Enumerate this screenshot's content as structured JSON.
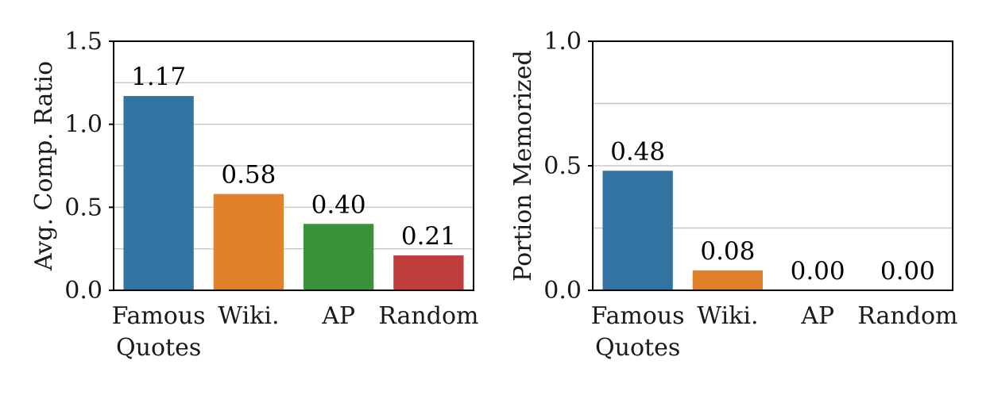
{
  "chart_data": [
    {
      "type": "bar",
      "categories": [
        [
          "Famous",
          "Quotes"
        ],
        [
          "Wiki."
        ],
        [
          "AP"
        ],
        [
          "Random"
        ]
      ],
      "values": [
        1.17,
        0.58,
        0.4,
        0.21
      ],
      "value_labels": [
        "1.17",
        "0.58",
        "0.40",
        "0.21"
      ],
      "colors": [
        "#3274a1",
        "#e1812c",
        "#3a923a",
        "#c03d3e"
      ],
      "ylabel": "Avg. Comp. Ratio",
      "xlabel": "",
      "ylim": [
        0,
        1.5
      ],
      "yticks": [
        0.0,
        0.5,
        1.0,
        1.5
      ],
      "ytick_labels": [
        "0.0",
        "0.5",
        "1.0",
        "1.5"
      ],
      "minor_gridlines": [
        0.25,
        0.75,
        1.25
      ],
      "grid": true
    },
    {
      "type": "bar",
      "categories": [
        [
          "Famous",
          "Quotes"
        ],
        [
          "Wiki."
        ],
        [
          "AP"
        ],
        [
          "Random"
        ]
      ],
      "values": [
        0.48,
        0.08,
        0.0,
        0.0
      ],
      "value_labels": [
        "0.48",
        "0.08",
        "0.00",
        "0.00"
      ],
      "colors": [
        "#3274a1",
        "#e1812c",
        "#3a923a",
        "#c03d3e"
      ],
      "ylabel": "Portion Memorized",
      "xlabel": "",
      "ylim": [
        0,
        1.0
      ],
      "yticks": [
        0.0,
        0.5,
        1.0
      ],
      "ytick_labels": [
        "0.0",
        "0.5",
        "1.0"
      ],
      "minor_gridlines": [
        0.25,
        0.75
      ],
      "grid": true
    }
  ]
}
